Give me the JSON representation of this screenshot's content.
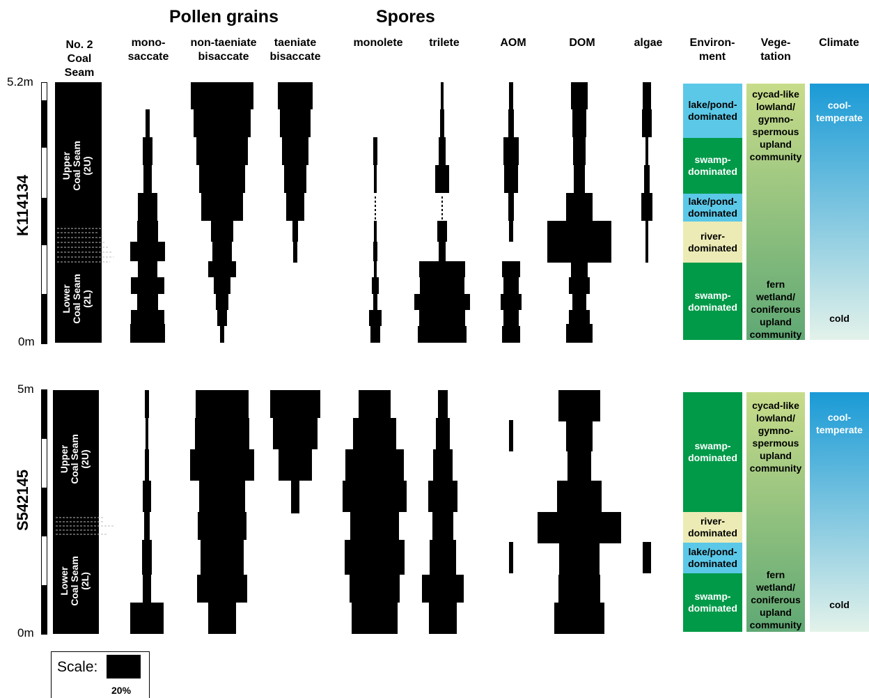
{
  "headers": {
    "pollen": "Pollen grains",
    "spores": "Spores",
    "seam": "No. 2\nCoal\nSeam",
    "cols": [
      "mono-\nsaccate",
      "non-taeniate\nbisaccate",
      "taeniate\nbisaccate",
      "monolete",
      "trilete",
      "AOM",
      "DOM",
      "algae"
    ],
    "env": "Environ-\nment",
    "veg": "Vege-\ntation",
    "climate": "Climate"
  },
  "sections": [
    {
      "name": "K114134",
      "top_label": "5.2m",
      "bottom_label": "0m",
      "upper_seam": "Upper\nCoal Seam\n(2U)",
      "lower_seam": "Lower\nCoal Seam\n(2L)",
      "environment": [
        {
          "label": "lake/pond-\ndominated",
          "color": "#5bc8e8"
        },
        {
          "label": "swamp-\ndominated",
          "color": "#009a48"
        },
        {
          "label": "lake/pond-\ndominated",
          "color": "#5bc8e8"
        },
        {
          "label": "river-\ndominated",
          "color": "#ecebb5"
        },
        {
          "label": "swamp-\ndominated",
          "color": "#009a48"
        }
      ],
      "vegetation": {
        "top": "cycad-like\nlowland/\ngymno-\nspermous\nupland\ncommunity",
        "bottom": "fern\nwetland/\nconiferous\nupland\ncommunity"
      },
      "climate": {
        "top": "cool-\ntemperate",
        "bottom": "cold"
      }
    },
    {
      "name": "S542145",
      "top_label": "5m",
      "bottom_label": "0m",
      "upper_seam": "Upper\nCoal Seam\n(2U)",
      "lower_seam": "Lower\nCoal Seam\n(2L)",
      "environment": [
        {
          "label": "swamp-\ndominated",
          "color": "#009a48"
        },
        {
          "label": "river-\ndominated",
          "color": "#ecebb5"
        },
        {
          "label": "lake/pond-\ndominated",
          "color": "#5bc8e8"
        },
        {
          "label": "swamp-\ndominated",
          "color": "#009a48"
        }
      ],
      "vegetation": {
        "top": "cycad-like\nlowland/\ngymno-\nspermous\nupland\ncommunity",
        "bottom": "fern\nwetland/\nconiferous\nupland\ncommunity"
      },
      "climate": {
        "top": "cool-\ntemperate",
        "bottom": "cold"
      }
    }
  ],
  "scale": {
    "label": "Scale:",
    "value": "20%"
  },
  "colors": {
    "veg_top": "#c8dc8a",
    "veg_bottom": "#5fa874",
    "clim_top": "#1a9ad6",
    "clim_bottom": "#e3f2ea"
  }
}
